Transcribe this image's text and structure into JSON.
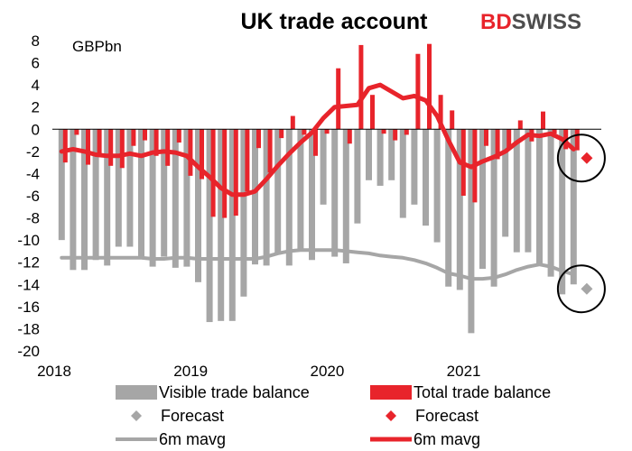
{
  "colors": {
    "visible": "#a6a6a6",
    "total": "#e8242b",
    "visible_line": "#a6a6a6",
    "total_line": "#e8242b",
    "logo_red": "#e8242b",
    "logo_dark": "#4d4d4d"
  },
  "logo": {
    "part1": "BD",
    "part2": "SWISS"
  },
  "chart_data": {
    "type": "bar",
    "title": "UK trade account",
    "unit_label": "GBPbn",
    "ylim": [
      -20,
      8
    ],
    "y_ticks": [
      8,
      6,
      4,
      2,
      0,
      -2,
      -4,
      -6,
      -8,
      -10,
      -12,
      -14,
      -16,
      -18,
      -20
    ],
    "x_ticks": [
      {
        "label": "2018",
        "value": "2018-01"
      },
      {
        "label": "2019",
        "value": "2019-01"
      },
      {
        "label": "2020",
        "value": "2020-01"
      },
      {
        "label": "2021",
        "value": "2021-01"
      }
    ],
    "months": [
      "2018-01",
      "2018-02",
      "2018-03",
      "2018-04",
      "2018-05",
      "2018-06",
      "2018-07",
      "2018-08",
      "2018-09",
      "2018-10",
      "2018-11",
      "2018-12",
      "2019-01",
      "2019-02",
      "2019-03",
      "2019-04",
      "2019-05",
      "2019-06",
      "2019-07",
      "2019-08",
      "2019-09",
      "2019-10",
      "2019-11",
      "2019-12",
      "2020-01",
      "2020-02",
      "2020-03",
      "2020-04",
      "2020-05",
      "2020-06",
      "2020-07",
      "2020-08",
      "2020-09",
      "2020-10",
      "2020-11",
      "2020-12",
      "2021-01",
      "2021-02",
      "2021-03",
      "2021-04",
      "2021-05",
      "2021-06",
      "2021-07",
      "2021-08",
      "2021-09",
      "2021-10"
    ],
    "series": [
      {
        "name": "Visible trade balance",
        "kind": "bar",
        "values": [
          -10.0,
          -12.7,
          -12.7,
          -11.8,
          -12.3,
          -10.6,
          -10.6,
          -11.6,
          -12.4,
          -11.5,
          -12.5,
          -12.4,
          -13.8,
          -17.4,
          -17.3,
          -17.3,
          -15.1,
          -12.2,
          -12.3,
          -11.3,
          -12.3,
          -10.8,
          -11.8,
          -6.8,
          -11.5,
          -12.1,
          -8.5,
          -4.6,
          -5.1,
          -4.6,
          -8.0,
          -6.8,
          -8.7,
          -10.2,
          -14.2,
          -14.5,
          -18.4,
          -12.6,
          -14.2,
          -9.7,
          -11.1,
          -11.1,
          -12.2,
          -13.3,
          -14.9,
          -14.0
        ]
      },
      {
        "name": "Total trade balance",
        "kind": "bar",
        "values": [
          -3.0,
          -0.5,
          -3.2,
          -2.4,
          -3.3,
          -3.5,
          -1.5,
          -1.0,
          -2.4,
          -3.3,
          -1.2,
          -4.2,
          -4.5,
          -7.9,
          -8.0,
          -7.8,
          -5.6,
          -1.7,
          -3.9,
          -0.8,
          1.2,
          -0.5,
          -2.4,
          -0.4,
          5.5,
          -1.3,
          7.6,
          3.1,
          -0.4,
          -1.0,
          -0.5,
          6.8,
          7.7,
          3.1,
          1.7,
          -6.0,
          -6.6,
          -1.5,
          -2.7,
          -1.7,
          0.8,
          -1.1,
          1.6,
          -0.4,
          -1.8,
          -1.9
        ]
      },
      {
        "name": "6m mavg",
        "kind": "line",
        "color_of": "visible_line",
        "values": [
          -11.6,
          -11.6,
          -11.6,
          -11.6,
          -11.6,
          -11.6,
          -11.6,
          -11.6,
          -11.7,
          -11.7,
          -11.6,
          -11.6,
          -11.7,
          -11.7,
          -11.7,
          -11.7,
          -11.7,
          -11.7,
          -11.5,
          -11.2,
          -11.0,
          -10.9,
          -10.9,
          -10.9,
          -10.9,
          -11.0,
          -11.1,
          -11.2,
          -11.4,
          -11.5,
          -11.6,
          -11.8,
          -12.1,
          -12.5,
          -13.0,
          -13.2,
          -13.5,
          -13.5,
          -13.4,
          -13.1,
          -12.7,
          -12.4,
          -12.2,
          -12.4,
          -12.8,
          -13.1
        ]
      },
      {
        "name": "6m mavg",
        "kind": "line",
        "color_of": "total_line",
        "values": [
          -2.0,
          -1.8,
          -2.0,
          -2.3,
          -2.4,
          -2.4,
          -2.2,
          -2.4,
          -2.1,
          -2.0,
          -2.1,
          -2.4,
          -3.4,
          -4.3,
          -5.3,
          -5.9,
          -5.9,
          -5.6,
          -4.5,
          -3.3,
          -2.2,
          -1.2,
          -0.3,
          1.0,
          2.0,
          2.1,
          2.2,
          3.7,
          4.0,
          3.4,
          2.8,
          3.0,
          2.6,
          1.2,
          -1.0,
          -3.0,
          -3.4,
          -2.9,
          -2.5,
          -2.0,
          -1.2,
          -0.5,
          -0.6,
          -0.4,
          -0.9,
          -1.8
        ]
      },
      {
        "name": "Forecast",
        "kind": "marker",
        "color_of": "visible",
        "month": "2021-11",
        "value": -14.4
      },
      {
        "name": "Forecast",
        "kind": "marker",
        "color_of": "total",
        "month": "2021-11",
        "value": -2.6
      }
    ],
    "legend": {
      "placement": "bottom",
      "items": [
        {
          "label": "Visible trade balance",
          "swatch": "bar",
          "color_of": "visible"
        },
        {
          "label": "Total trade balance",
          "swatch": "bar",
          "color_of": "total"
        },
        {
          "label": "Forecast",
          "swatch": "diamond",
          "color_of": "visible"
        },
        {
          "label": "Forecast",
          "swatch": "diamond",
          "color_of": "total"
        },
        {
          "label": "6m mavg",
          "swatch": "line",
          "color_of": "visible_line"
        },
        {
          "label": "6m mavg",
          "swatch": "line",
          "color_of": "total_line"
        }
      ]
    },
    "annotations": [
      "circle-around-total-forecast",
      "circle-around-visible-forecast"
    ]
  }
}
